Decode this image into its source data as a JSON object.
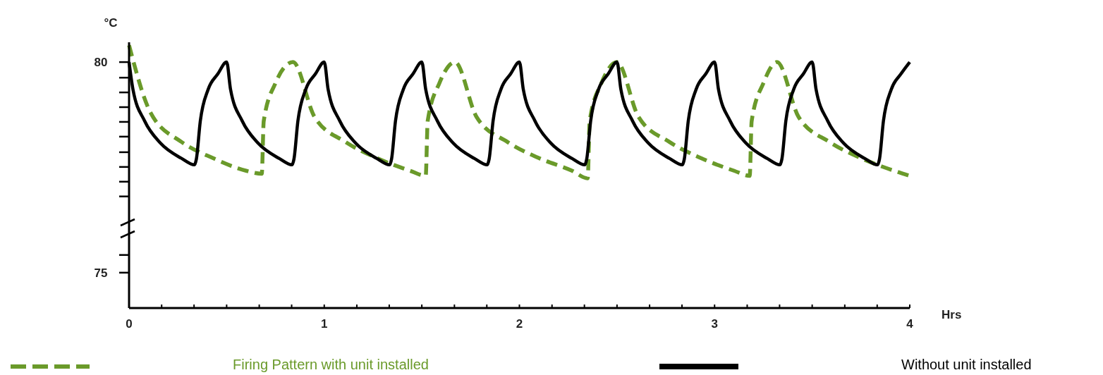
{
  "chart_data": {
    "type": "line",
    "xlabel": "Hrs",
    "ylabel": "°C",
    "xlim": [
      0,
      4
    ],
    "ylim": [
      74.16,
      80.47
    ],
    "xticks": [
      0,
      {
        "value": 0.167,
        "label": null
      },
      {
        "value": 0.333,
        "label": null
      },
      {
        "value": 0.5,
        "label": null
      },
      {
        "value": 0.667,
        "label": null
      },
      {
        "value": 0.833,
        "label": null
      },
      1,
      {
        "value": 1.167,
        "label": null
      },
      {
        "value": 1.333,
        "label": null
      },
      {
        "value": 1.5,
        "label": null
      },
      {
        "value": 1.667,
        "label": null
      },
      {
        "value": 1.833,
        "label": null
      },
      2,
      {
        "value": 2.167,
        "label": null
      },
      {
        "value": 2.333,
        "label": null
      },
      {
        "value": 2.5,
        "label": null
      },
      {
        "value": 2.667,
        "label": null
      },
      {
        "value": 2.833,
        "label": null
      },
      3,
      {
        "value": 3.167,
        "label": null
      },
      {
        "value": 3.333,
        "label": null
      },
      {
        "value": 3.5,
        "label": null
      },
      {
        "value": 3.667,
        "label": null
      },
      {
        "value": 3.833,
        "label": null
      },
      4
    ],
    "yticks": [
      75,
      {
        "value": 75.42,
        "label": null
      },
      {
        "value": 76.81,
        "label": null
      },
      {
        "value": 77.16,
        "label": null
      },
      {
        "value": 77.51,
        "label": null
      },
      {
        "value": 77.86,
        "label": null
      },
      {
        "value": 78.23,
        "label": null
      },
      {
        "value": 78.58,
        "label": null
      },
      {
        "value": 78.93,
        "label": null
      },
      {
        "value": 79.28,
        "label": null
      },
      {
        "value": 79.63,
        "label": null
      },
      80
    ],
    "grid": false,
    "legend": "bottom",
    "marker": "none",
    "series": [
      {
        "name": "Firing Pattern with unit installed",
        "color": "#6a9a2a",
        "line_style": "dashed",
        "x": [
          0,
          0.11,
          0.27,
          0.43,
          0.6,
          0.68,
          0.69,
          0.75,
          0.84,
          0.95,
          1.11,
          1.27,
          1.44,
          1.52,
          1.53,
          1.59,
          1.67,
          1.78,
          1.94,
          2.1,
          2.27,
          2.35,
          2.36,
          2.42,
          2.5,
          2.61,
          2.77,
          2.93,
          3.1,
          3.18,
          3.19,
          3.25,
          3.32,
          3.43,
          3.59,
          3.75,
          3.92,
          4.0
        ],
        "values": [
          80.4,
          78.8,
          78.1,
          77.72,
          77.42,
          77.35,
          78.6,
          79.5,
          80,
          78.7,
          78.1,
          77.72,
          77.42,
          77.3,
          78.6,
          79.5,
          80,
          78.7,
          78.1,
          77.72,
          77.42,
          77.24,
          78.6,
          79.5,
          80,
          78.7,
          78.1,
          77.72,
          77.42,
          77.3,
          78.6,
          79.5,
          80,
          78.7,
          78.1,
          77.72,
          77.42,
          77.3
        ]
      },
      {
        "name": "Without unit installed",
        "color": "#000000",
        "line_style": "solid",
        "x": [
          0,
          0.02,
          0.08,
          0.16,
          0.27,
          0.335,
          0.345,
          0.365,
          0.405,
          0.455,
          0.5,
          0.52,
          0.58,
          0.66,
          0.77,
          0.835,
          0.845,
          0.865,
          0.905,
          0.955,
          1,
          1.02,
          1.08,
          1.16,
          1.27,
          1.335,
          1.345,
          1.365,
          1.405,
          1.455,
          1.5,
          1.52,
          1.58,
          1.66,
          1.77,
          1.835,
          1.845,
          1.865,
          1.905,
          1.955,
          2,
          2.02,
          2.08,
          2.16,
          2.27,
          2.335,
          2.345,
          2.365,
          2.405,
          2.455,
          2.5,
          2.52,
          2.58,
          2.66,
          2.77,
          2.835,
          2.845,
          2.865,
          2.905,
          2.955,
          3,
          3.02,
          3.08,
          3.16,
          3.27,
          3.335,
          3.345,
          3.365,
          3.405,
          3.455,
          3.5,
          3.52,
          3.58,
          3.66,
          3.77,
          3.835,
          3.845,
          3.865,
          3.905,
          3.955,
          4
        ],
        "values": [
          80,
          79.35,
          78.6,
          78.08,
          77.71,
          77.56,
          77.7,
          78.6,
          79.35,
          79.72,
          80,
          79.35,
          78.6,
          78.08,
          77.71,
          77.56,
          77.7,
          78.6,
          79.35,
          79.72,
          80,
          79.35,
          78.6,
          78.08,
          77.71,
          77.56,
          77.7,
          78.6,
          79.35,
          79.72,
          80,
          79.35,
          78.6,
          78.08,
          77.71,
          77.56,
          77.7,
          78.6,
          79.35,
          79.72,
          80,
          79.35,
          78.6,
          78.08,
          77.71,
          77.56,
          77.7,
          78.6,
          79.35,
          79.72,
          80,
          79.35,
          78.6,
          78.08,
          77.71,
          77.56,
          77.7,
          78.6,
          79.35,
          79.72,
          80,
          79.35,
          78.6,
          78.08,
          77.71,
          77.56,
          77.7,
          78.6,
          79.35,
          79.72,
          80,
          79.35,
          78.6,
          78.08,
          77.71,
          77.56,
          77.7,
          78.6,
          79.35,
          79.72,
          80
        ]
      }
    ]
  }
}
